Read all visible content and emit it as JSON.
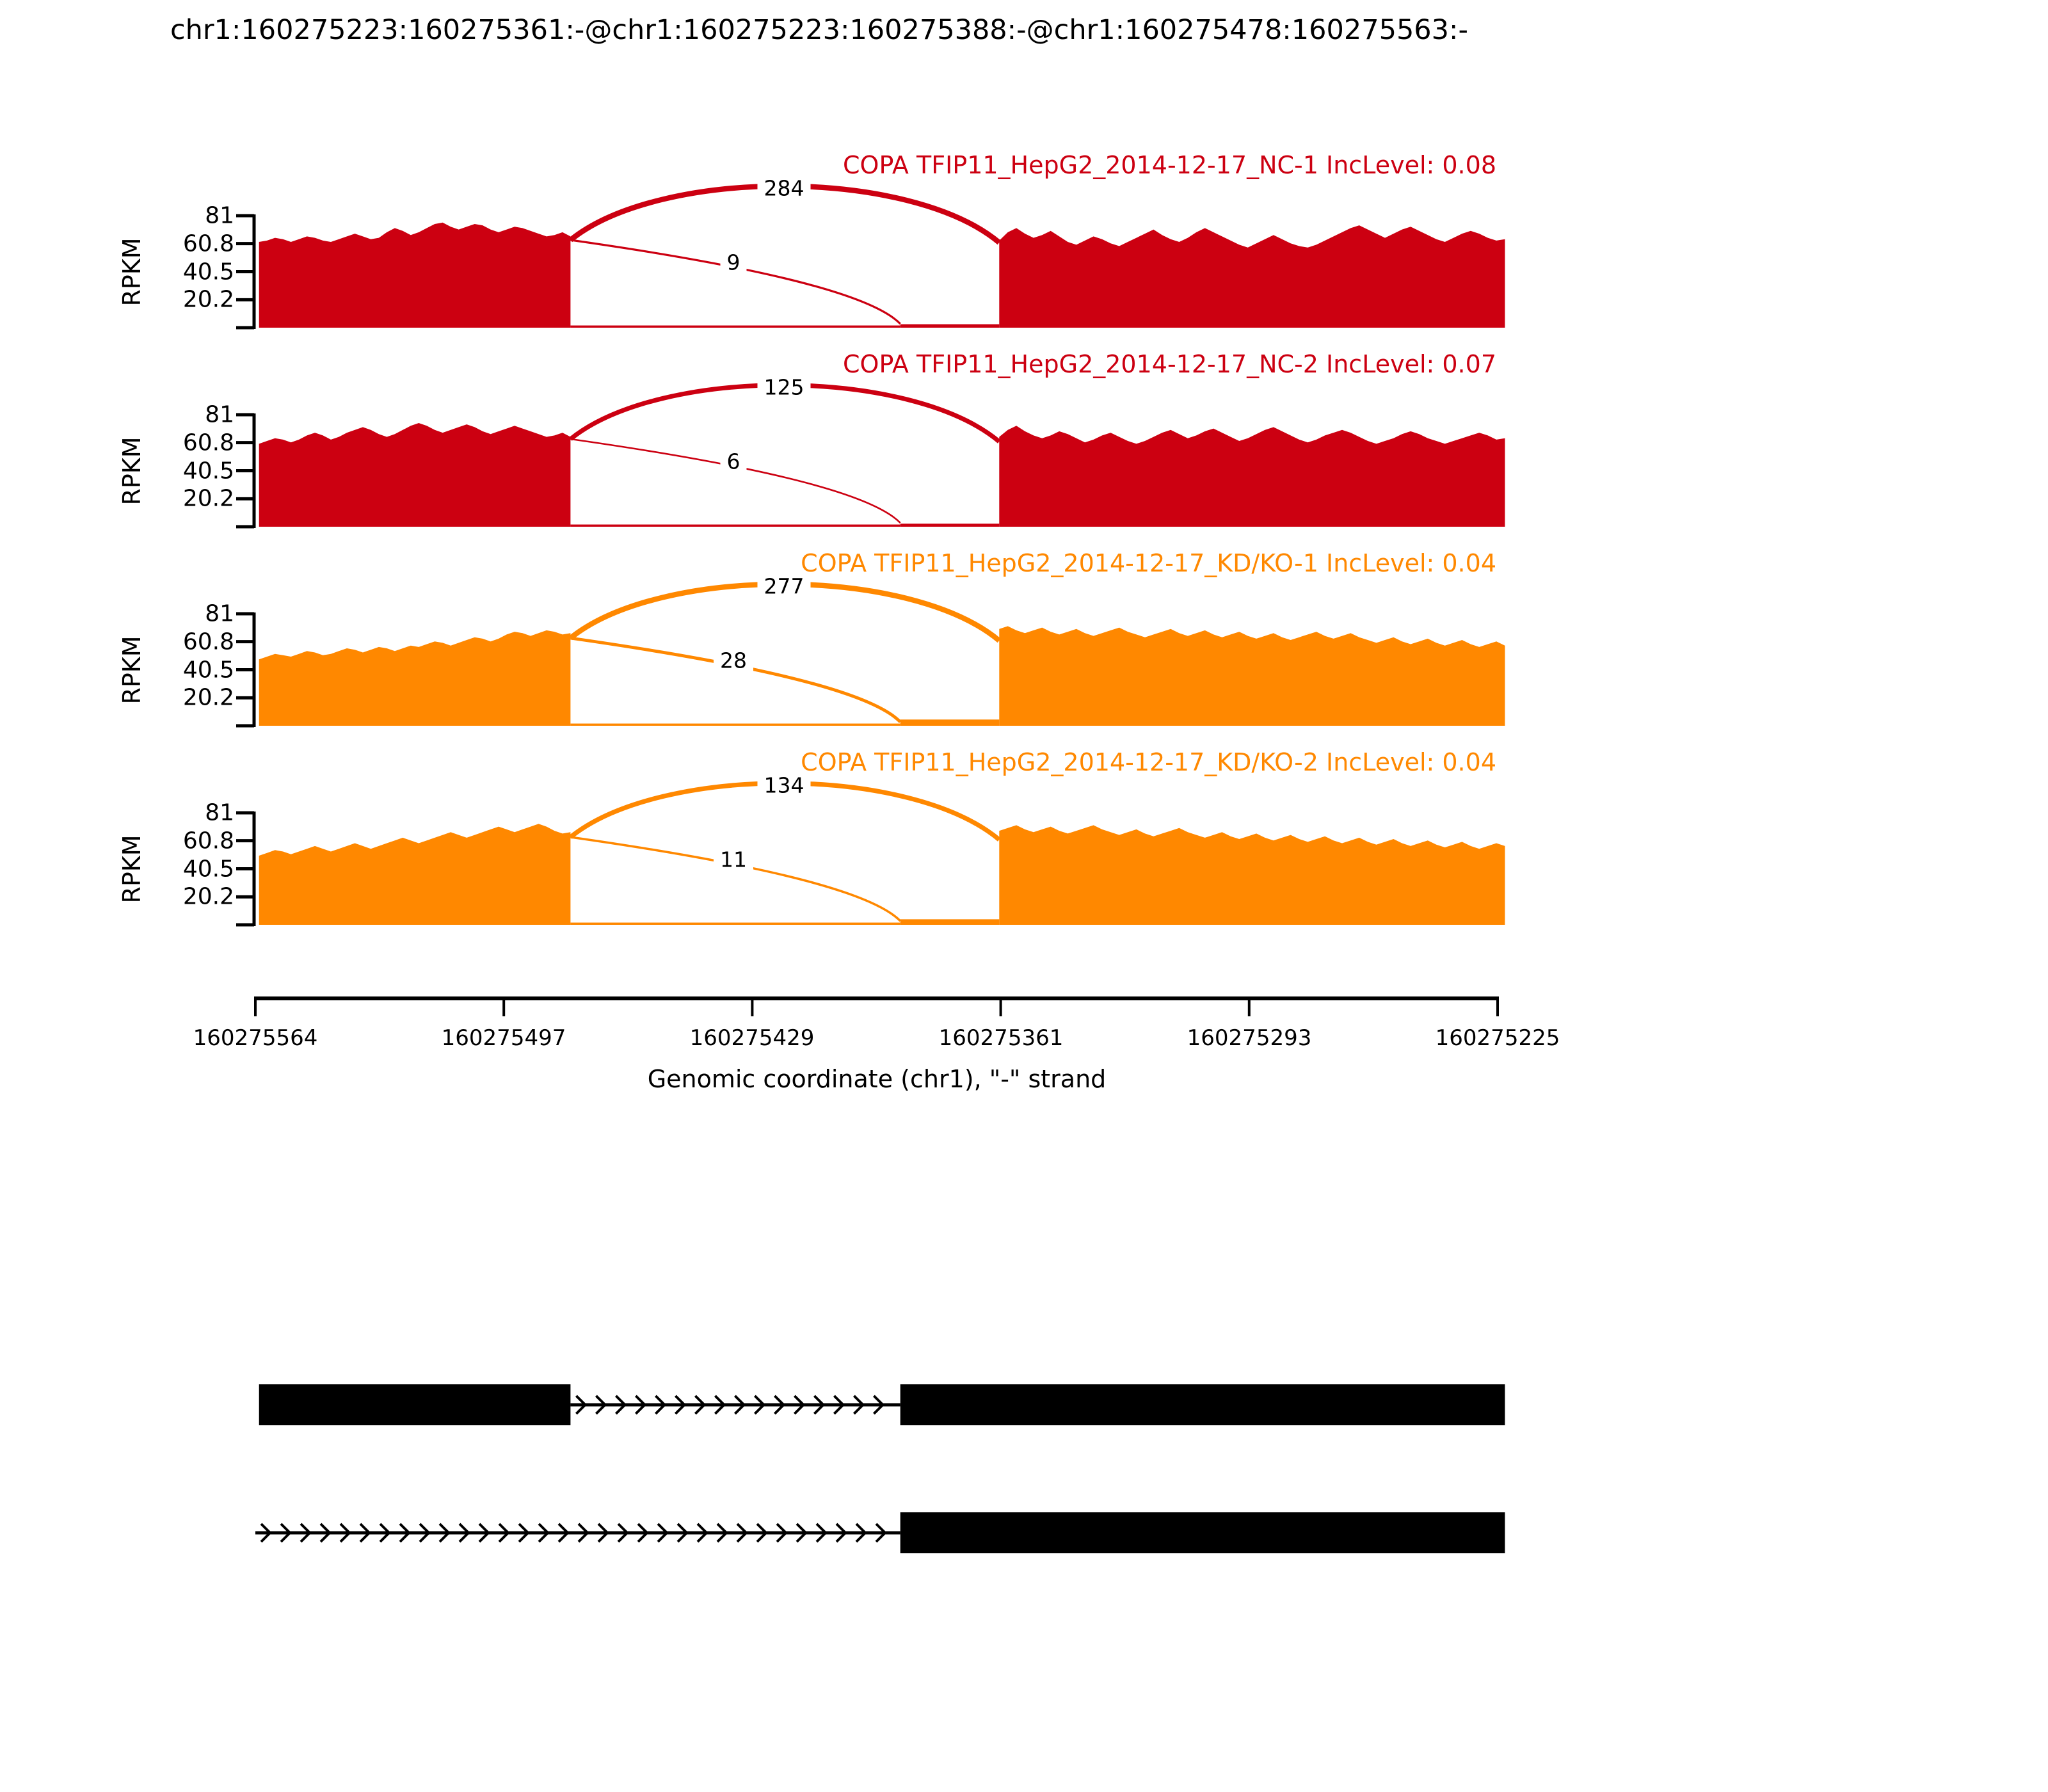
{
  "title": "chr1:160275223:160275361:-@chr1:160275223:160275388:-@chr1:160275478:160275563:-",
  "y_axis": {
    "label": "RPKM",
    "ticks": [
      "81",
      "60.8",
      "40.5",
      "20.2"
    ]
  },
  "x_axis": {
    "label": "Genomic coordinate (chr1), \"-\" strand",
    "ticks": [
      "160275564",
      "160275497",
      "160275429",
      "160275361",
      "160275293",
      "160275225"
    ]
  },
  "chart_data": {
    "type": "area",
    "subtype": "sashimi-plot",
    "gene": "COPA",
    "strand": "-",
    "chromosome": "chr1",
    "coordinate_range": [
      160275564,
      160275225
    ],
    "rpkm_range": [
      0,
      81
    ],
    "grid": false,
    "regions": {
      "flanking_exon": [
        160275478,
        160275563
      ],
      "alt_segment": [
        160275361,
        160275388
      ],
      "common_exon": [
        160275223,
        160275361
      ]
    },
    "tracks": [
      {
        "label": "COPA TFIP11_HepG2_2014-12-17_NC-1 IncLevel: 0.08",
        "inc_level": "0.08",
        "color": "#CC0011",
        "junction_exclusion_count": "284",
        "junction_inclusion_count": "9",
        "intron_baseline_rpkm": 0.8,
        "alt_segment_rpkm": 2.5,
        "coverage_left": [
          62,
          63,
          65,
          64,
          62,
          64,
          66,
          65,
          63,
          62,
          64,
          66,
          68,
          66,
          64,
          65,
          69,
          72,
          70,
          67,
          69,
          72,
          75,
          76,
          73,
          71,
          73,
          75,
          74,
          71,
          69,
          71,
          73,
          72,
          70,
          68,
          66,
          67,
          69,
          66
        ],
        "coverage_right": [
          63,
          69,
          72,
          68,
          65,
          67,
          70,
          66,
          62,
          60,
          63,
          66,
          64,
          61,
          59,
          62,
          65,
          68,
          71,
          67,
          64,
          62,
          65,
          69,
          72,
          69,
          66,
          63,
          60,
          58,
          61,
          64,
          67,
          64,
          61,
          59,
          58,
          60,
          63,
          66,
          69,
          72,
          74,
          71,
          68,
          65,
          68,
          71,
          73,
          70,
          67,
          64,
          62,
          65,
          68,
          70,
          68,
          65,
          63,
          64
        ]
      },
      {
        "label": "COPA TFIP11_HepG2_2014-12-17_NC-2 IncLevel: 0.07",
        "inc_level": "0.07",
        "color": "#CC0011",
        "junction_exclusion_count": "125",
        "junction_inclusion_count": "6",
        "intron_baseline_rpkm": 0.8,
        "alt_segment_rpkm": 2.2,
        "coverage_left": [
          60,
          62,
          64,
          63,
          61,
          63,
          66,
          68,
          66,
          63,
          65,
          68,
          70,
          72,
          70,
          67,
          65,
          67,
          70,
          73,
          75,
          73,
          70,
          68,
          70,
          72,
          74,
          72,
          69,
          67,
          69,
          71,
          73,
          71,
          69,
          67,
          65,
          66,
          68,
          65
        ],
        "coverage_right": [
          65,
          70,
          73,
          69,
          66,
          64,
          66,
          69,
          67,
          64,
          61,
          63,
          66,
          68,
          65,
          62,
          60,
          62,
          65,
          68,
          70,
          67,
          64,
          66,
          69,
          71,
          68,
          65,
          62,
          64,
          67,
          70,
          72,
          69,
          66,
          63,
          61,
          63,
          66,
          68,
          70,
          68,
          65,
          62,
          60,
          62,
          64,
          67,
          69,
          67,
          64,
          62,
          60,
          62,
          64,
          66,
          68,
          66,
          63,
          64
        ]
      },
      {
        "label": "COPA TFIP11_HepG2_2014-12-17_KD/KO-1 IncLevel: 0.04",
        "inc_level": "0.04",
        "color": "#FF8800",
        "junction_exclusion_count": "277",
        "junction_inclusion_count": "28",
        "intron_baseline_rpkm": 0.8,
        "alt_segment_rpkm": 4.5,
        "coverage_left": [
          48,
          50,
          52,
          51,
          50,
          52,
          54,
          53,
          51,
          52,
          54,
          56,
          55,
          53,
          55,
          57,
          56,
          54,
          56,
          58,
          57,
          59,
          61,
          60,
          58,
          60,
          62,
          64,
          63,
          61,
          63,
          66,
          68,
          67,
          65,
          67,
          69,
          68,
          66,
          67
        ],
        "coverage_right": [
          70,
          72,
          69,
          67,
          69,
          71,
          68,
          66,
          68,
          70,
          67,
          65,
          67,
          69,
          71,
          68,
          66,
          64,
          66,
          68,
          70,
          67,
          65,
          67,
          69,
          66,
          64,
          66,
          68,
          65,
          63,
          65,
          67,
          64,
          62,
          64,
          66,
          68,
          65,
          63,
          65,
          67,
          64,
          62,
          60,
          62,
          64,
          61,
          59,
          61,
          63,
          60,
          58,
          60,
          62,
          59,
          57,
          59,
          61,
          58
        ]
      },
      {
        "label": "COPA TFIP11_HepG2_2014-12-17_KD/KO-2 IncLevel: 0.04",
        "inc_level": "0.04",
        "color": "#FF8800",
        "junction_exclusion_count": "134",
        "junction_inclusion_count": "11",
        "intron_baseline_rpkm": 0.8,
        "alt_segment_rpkm": 4.0,
        "coverage_left": [
          50,
          52,
          54,
          53,
          51,
          53,
          55,
          57,
          55,
          53,
          55,
          57,
          59,
          57,
          55,
          57,
          59,
          61,
          63,
          61,
          59,
          61,
          63,
          65,
          67,
          65,
          63,
          65,
          67,
          69,
          71,
          69,
          67,
          69,
          71,
          73,
          71,
          68,
          66,
          67
        ],
        "coverage_right": [
          68,
          70,
          72,
          69,
          67,
          69,
          71,
          68,
          66,
          68,
          70,
          72,
          69,
          67,
          65,
          67,
          69,
          66,
          64,
          66,
          68,
          70,
          67,
          65,
          63,
          65,
          67,
          64,
          62,
          64,
          66,
          63,
          61,
          63,
          65,
          62,
          60,
          62,
          64,
          61,
          59,
          61,
          63,
          60,
          58,
          60,
          62,
          59,
          57,
          59,
          61,
          58,
          56,
          58,
          60,
          57,
          55,
          57,
          59,
          57
        ]
      }
    ],
    "transcripts": [
      {
        "exon_boxes": [
          [
            160275478,
            160275563
          ],
          [
            160275223,
            160275388
          ]
        ],
        "intron_line": [
          160275388,
          160275478
        ]
      },
      {
        "exon_boxes": [
          [
            160275223,
            160275388
          ]
        ],
        "intron_line": [
          160275388,
          160275564
        ]
      }
    ]
  }
}
